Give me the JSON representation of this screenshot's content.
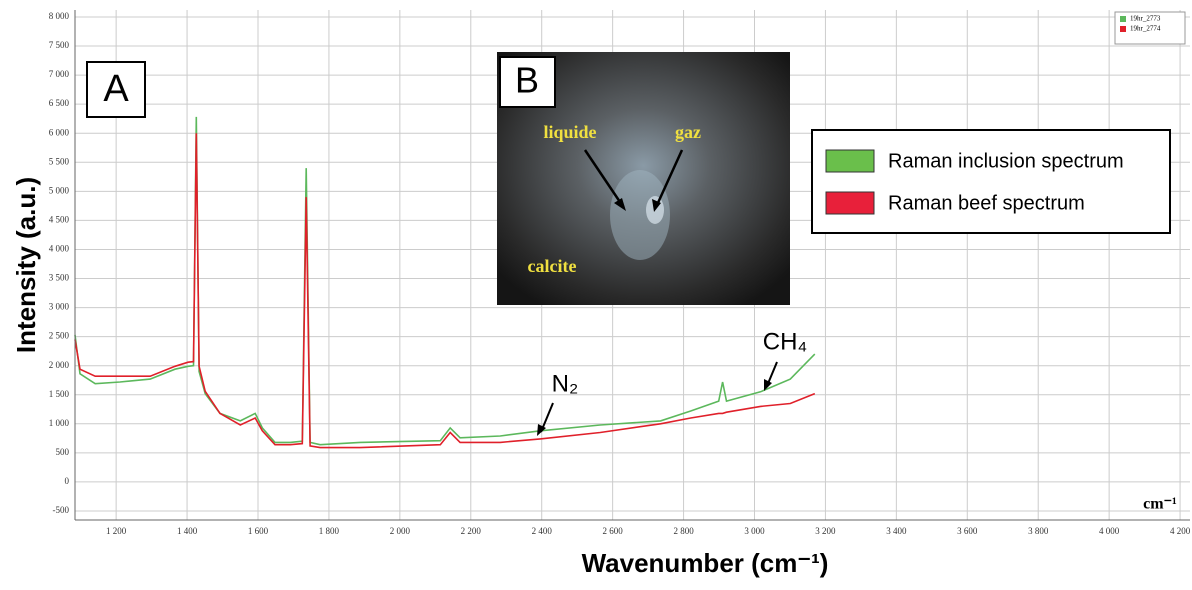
{
  "chart_data": {
    "type": "line",
    "xlabel": "Wavenumber (cm⁻¹)",
    "ylabel": "Intensity (a.u.)",
    "unit": "cm⁻¹",
    "x": [
      1084,
      1098,
      1141,
      1211,
      1296,
      1366,
      1403,
      1418,
      1426,
      1434,
      1451,
      1493,
      1550,
      1592,
      1612,
      1648,
      1691,
      1725,
      1736,
      1747,
      1775,
      1888,
      2114,
      2142,
      2170,
      2283,
      2396,
      2565,
      2735,
      2820,
      2899,
      2910,
      2921,
      3017,
      3101,
      3170
    ],
    "series": [
      {
        "name": "19hr_2773",
        "color": "#5cb85c",
        "values": [
          2530,
          1860,
          1690,
          1720,
          1770,
          1940,
          1990,
          2000,
          6280,
          1900,
          1520,
          1180,
          1050,
          1180,
          930,
          680,
          680,
          700,
          5400,
          680,
          640,
          680,
          710,
          930,
          760,
          790,
          880,
          980,
          1050,
          1220,
          1390,
          1720,
          1390,
          1550,
          1770,
          2200
        ]
      },
      {
        "name": "19hr_2774",
        "color": "#e0202a",
        "values": [
          2450,
          1940,
          1820,
          1820,
          1820,
          1990,
          2060,
          2070,
          6000,
          1990,
          1560,
          1180,
          980,
          1100,
          880,
          640,
          640,
          660,
          4900,
          620,
          590,
          590,
          640,
          850,
          680,
          680,
          740,
          850,
          1000,
          1100,
          1180,
          1180,
          1200,
          1300,
          1350,
          1520
        ]
      }
    ],
    "xlim": [
      1084,
      4228
    ],
    "ylim": [
      -655,
      8120
    ],
    "xticks": [
      {
        "value": 1200,
        "label": "1 200"
      },
      {
        "value": 1400,
        "label": "1 400"
      },
      {
        "value": 1600,
        "label": "1 600"
      },
      {
        "value": 1800,
        "label": "1 800"
      },
      {
        "value": 2000,
        "label": "2 000"
      },
      {
        "value": 2200,
        "label": "2 200"
      },
      {
        "value": 2400,
        "label": "2 400"
      },
      {
        "value": 2600,
        "label": "2 600"
      },
      {
        "value": 2800,
        "label": "2 800"
      },
      {
        "value": 3000,
        "label": "3 000"
      },
      {
        "value": 3200,
        "label": "3 200"
      },
      {
        "value": 3400,
        "label": "3 400"
      },
      {
        "value": 3600,
        "label": "3 600"
      },
      {
        "value": 3800,
        "label": "3 800"
      },
      {
        "value": 4000,
        "label": "4 000"
      },
      {
        "value": 4200,
        "label": "4 200"
      }
    ],
    "yticks": [
      -500,
      0,
      500,
      {
        "value": 1000,
        "label": "1 000"
      },
      {
        "value": 1500,
        "label": "1 500"
      },
      {
        "value": 2000,
        "label": "2 000"
      },
      {
        "value": 2500,
        "label": "2 500"
      },
      {
        "value": 3000,
        "label": "3 000"
      },
      {
        "value": 3500,
        "label": "3 500"
      },
      {
        "value": 4000,
        "label": "4 000"
      },
      {
        "value": 4500,
        "label": "4 500"
      },
      {
        "value": 5000,
        "label": "5 000"
      },
      {
        "value": 5500,
        "label": "5 500"
      },
      {
        "value": 6000,
        "label": "6 000"
      },
      {
        "value": 6500,
        "label": "6 500"
      },
      {
        "value": 7000,
        "label": "7 000"
      },
      {
        "value": 7500,
        "label": "7 500"
      },
      {
        "value": 8000,
        "label": "8 000"
      }
    ],
    "grid": true,
    "legend": "upper right",
    "annotations": {
      "panel_a": "A",
      "n2": "N₂",
      "ch4": "CH₄"
    },
    "key": [
      {
        "label": "Raman inclusion spectrum",
        "color": "#6abf4b"
      },
      {
        "label": "Raman beef spectrum",
        "color": "#e8203a"
      }
    ]
  },
  "inset": {
    "panel": "B",
    "labels": [
      "liquide",
      "gaz",
      "calcite"
    ]
  }
}
